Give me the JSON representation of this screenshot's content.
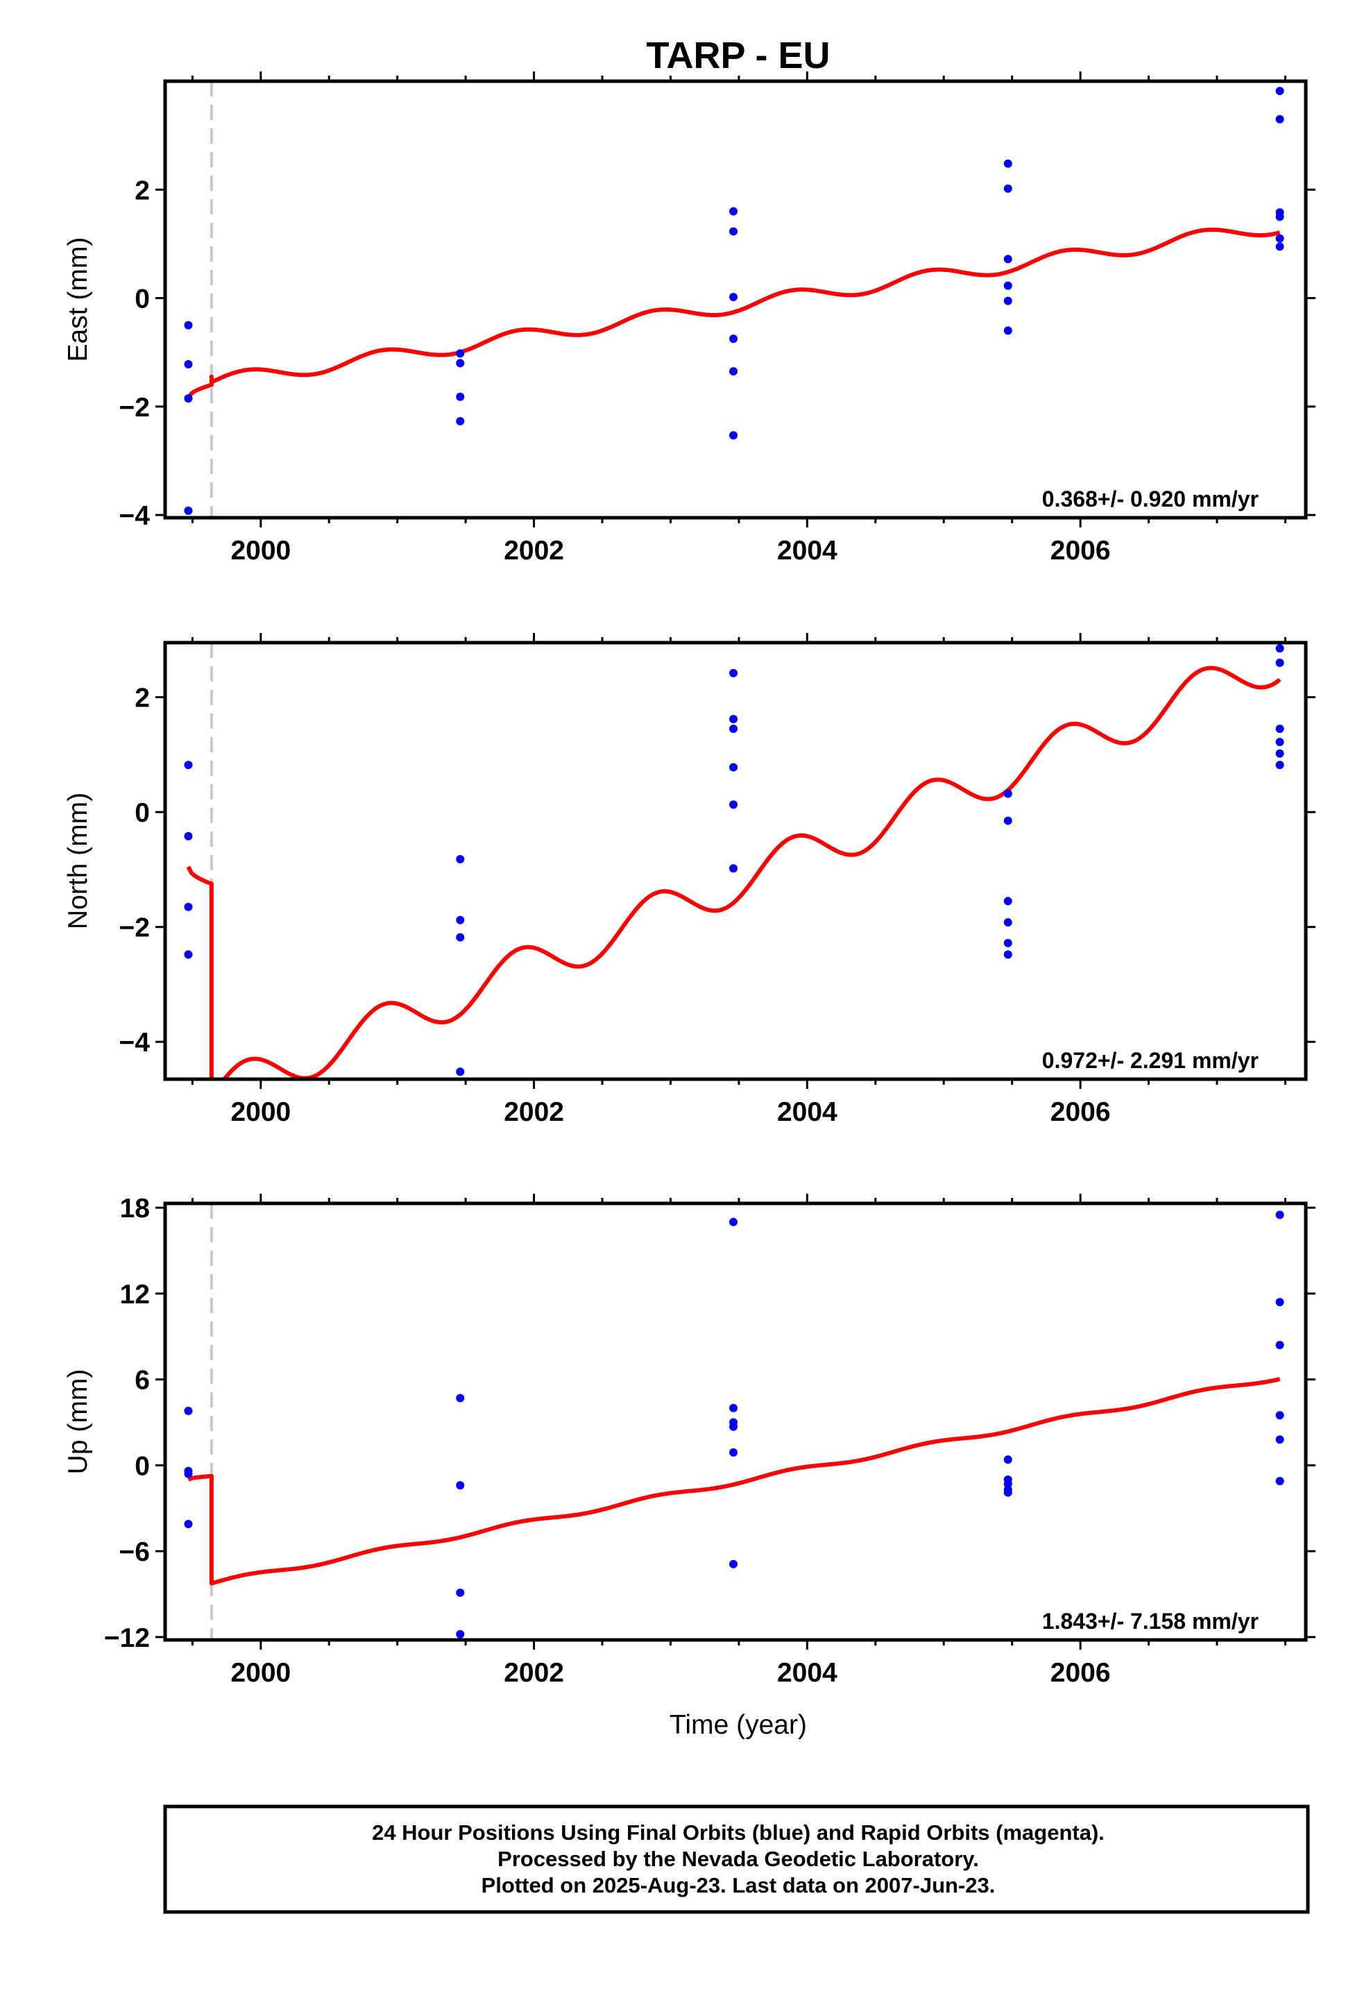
{
  "title": "TARP - EU",
  "x_axis_label": "Time (year)",
  "footer": {
    "line1": "24 Hour Positions Using Final Orbits (blue) and Rapid Orbits (magenta).",
    "line2": "Processed by the Nevada Geodetic Laboratory.",
    "line3": "Plotted on 2025-Aug-23. Last data on 2007-Jun-23."
  },
  "colors": {
    "points": "#0000ff",
    "model": "#ff0000",
    "break_line": "#c8c8c8",
    "frame": "#000000"
  },
  "chart_data": [
    {
      "type": "scatter",
      "component": "east",
      "ylabel": "East (mm)",
      "rate_text": "0.368+/- 0.920 mm/yr",
      "xlim": [
        1999.3,
        2007.65
      ],
      "ylim": [
        -4.05,
        4.0
      ],
      "x_ticks": [
        "2000",
        "2002",
        "2004",
        "2006"
      ],
      "y_ticks": [
        "−4",
        "−2",
        "0",
        "2"
      ],
      "y_tick_values": [
        -4,
        -2,
        0,
        2
      ],
      "break_x": 1999.64,
      "points": [
        [
          1999.47,
          -0.5
        ],
        [
          1999.47,
          -1.22
        ],
        [
          1999.47,
          -1.85
        ],
        [
          1999.47,
          -3.92
        ],
        [
          2001.46,
          -1.02
        ],
        [
          2001.46,
          -1.2
        ],
        [
          2001.46,
          -1.82
        ],
        [
          2001.46,
          -2.27
        ],
        [
          2003.46,
          1.6
        ],
        [
          2003.46,
          1.23
        ],
        [
          2003.46,
          0.02
        ],
        [
          2003.46,
          -0.75
        ],
        [
          2003.46,
          -1.35
        ],
        [
          2003.46,
          -2.53
        ],
        [
          2005.47,
          2.48
        ],
        [
          2005.47,
          2.02
        ],
        [
          2005.47,
          0.72
        ],
        [
          2005.47,
          0.23
        ],
        [
          2005.47,
          -0.05
        ],
        [
          2005.47,
          -0.6
        ],
        [
          2007.46,
          3.82
        ],
        [
          2007.46,
          3.3
        ],
        [
          2007.46,
          1.58
        ],
        [
          2007.46,
          1.5
        ],
        [
          2007.46,
          1.1
        ],
        [
          2007.46,
          0.95
        ]
      ],
      "model": {
        "before_break": {
          "x_start": 1999.47,
          "y_start": -1.85,
          "y_end": -1.6
        },
        "offset_at_break": 0.15,
        "start": -1.55,
        "rate": 0.368,
        "seasonal_amplitude": 0.13
      }
    },
    {
      "type": "scatter",
      "component": "north",
      "ylabel": "North (mm)",
      "rate_text": "0.972+/- 2.291 mm/yr",
      "xlim": [
        1999.3,
        2007.65
      ],
      "ylim": [
        -4.65,
        2.95
      ],
      "x_ticks": [
        "2000",
        "2002",
        "2004",
        "2006"
      ],
      "y_ticks": [
        "−4",
        "−2",
        "0",
        "2"
      ],
      "y_tick_values": [
        -4,
        -2,
        0,
        2
      ],
      "break_x": 1999.64,
      "points": [
        [
          1999.47,
          0.82
        ],
        [
          1999.47,
          -0.42
        ],
        [
          1999.47,
          -1.65
        ],
        [
          1999.47,
          -2.48
        ],
        [
          2001.46,
          -0.82
        ],
        [
          2001.46,
          -1.88
        ],
        [
          2001.46,
          -2.18
        ],
        [
          2001.46,
          -4.52
        ],
        [
          2003.46,
          2.42
        ],
        [
          2003.46,
          1.62
        ],
        [
          2003.46,
          1.45
        ],
        [
          2003.46,
          0.78
        ],
        [
          2003.46,
          0.13
        ],
        [
          2003.46,
          -0.98
        ],
        [
          2005.47,
          0.32
        ],
        [
          2005.47,
          -0.15
        ],
        [
          2005.47,
          -1.55
        ],
        [
          2005.47,
          -1.92
        ],
        [
          2005.47,
          -2.28
        ],
        [
          2005.47,
          -2.48
        ],
        [
          2007.46,
          2.85
        ],
        [
          2007.46,
          2.6
        ],
        [
          2007.46,
          1.45
        ],
        [
          2007.46,
          1.22
        ],
        [
          2007.46,
          1.02
        ],
        [
          2007.46,
          0.82
        ]
      ],
      "model": {
        "before_break": {
          "x_start": 1999.47,
          "y_start": -0.95,
          "y_end": -1.25
        },
        "offset_at_break": -3.6,
        "start": -4.95,
        "rate": 0.972,
        "seasonal_amplitude": 0.38
      }
    },
    {
      "type": "scatter",
      "component": "up",
      "ylabel": "Up (mm)",
      "rate_text": "1.843+/- 7.158 mm/yr",
      "xlim": [
        1999.3,
        2007.65
      ],
      "ylim": [
        -12.2,
        18.3
      ],
      "x_ticks": [
        "2000",
        "2002",
        "2004",
        "2006"
      ],
      "y_ticks": [
        "−12",
        "−6",
        "0",
        "6",
        "12",
        "18"
      ],
      "y_tick_values": [
        -12,
        -6,
        0,
        6,
        12,
        18
      ],
      "break_x": 1999.64,
      "points": [
        [
          1999.47,
          3.8
        ],
        [
          1999.47,
          -0.4
        ],
        [
          1999.47,
          -0.6
        ],
        [
          1999.47,
          -4.1
        ],
        [
          2001.46,
          4.7
        ],
        [
          2001.46,
          -1.4
        ],
        [
          2001.46,
          -8.9
        ],
        [
          2001.46,
          -11.8
        ],
        [
          2003.46,
          17.0
        ],
        [
          2003.46,
          4.0
        ],
        [
          2003.46,
          3.0
        ],
        [
          2003.46,
          2.7
        ],
        [
          2003.46,
          0.9
        ],
        [
          2003.46,
          -6.9
        ],
        [
          2005.47,
          0.4
        ],
        [
          2005.47,
          -1.0
        ],
        [
          2005.47,
          -1.3
        ],
        [
          2005.47,
          -1.7
        ],
        [
          2005.47,
          -1.9
        ],
        [
          2007.46,
          17.5
        ],
        [
          2007.46,
          11.4
        ],
        [
          2007.46,
          8.4
        ],
        [
          2007.46,
          3.5
        ],
        [
          2007.46,
          1.8
        ],
        [
          2007.46,
          -1.1
        ]
      ],
      "model": {
        "before_break": {
          "x_start": 1999.47,
          "y_start": -1.0,
          "y_end": -0.75
        },
        "offset_at_break": -7.5,
        "start": -8.25,
        "rate": 1.843,
        "seasonal_amplitude": 0.15
      }
    }
  ]
}
